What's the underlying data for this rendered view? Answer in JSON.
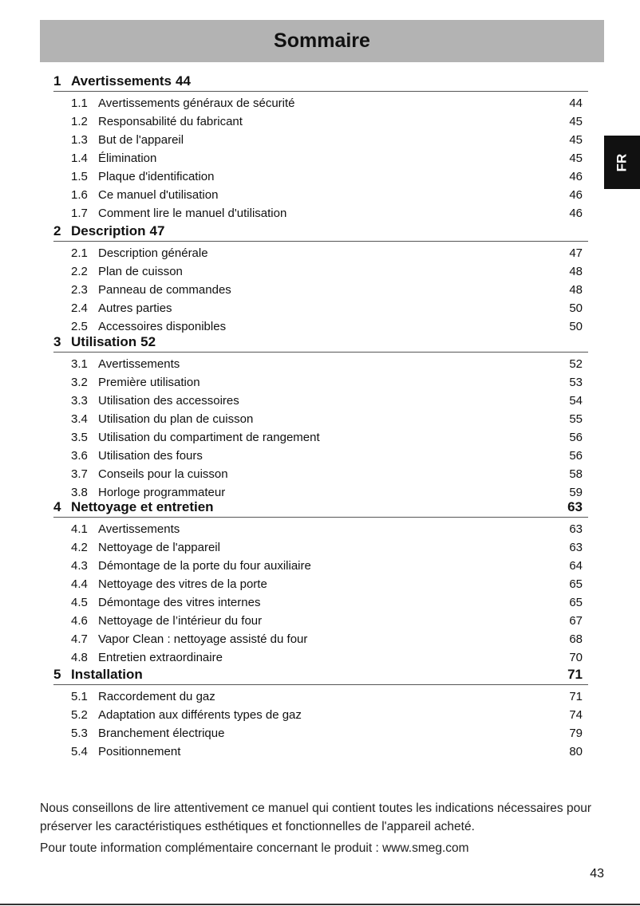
{
  "header": {
    "title": "Sommaire"
  },
  "language_tab": "FR",
  "sections": [
    {
      "num": "1",
      "title": "Avertissements",
      "page": "44",
      "entries": [
        {
          "num": "1.1",
          "title": "Avertissements généraux de sécurité",
          "page": "44"
        },
        {
          "num": "1.2",
          "title": "Responsabilité du fabricant",
          "page": "45"
        },
        {
          "num": "1.3",
          "title": "But de l'appareil",
          "page": "45"
        },
        {
          "num": "1.4",
          "title": "Élimination",
          "page": "45"
        },
        {
          "num": "1.5",
          "title": "Plaque d'identification",
          "page": "46"
        },
        {
          "num": "1.6",
          "title": "Ce manuel d'utilisation",
          "page": "46"
        },
        {
          "num": "1.7",
          "title": "Comment lire le manuel d'utilisation",
          "page": "46"
        }
      ]
    },
    {
      "num": "2",
      "title": "Description",
      "page": "47",
      "entries": [
        {
          "num": "2.1",
          "title": "Description générale",
          "page": "47"
        },
        {
          "num": "2.2",
          "title": "Plan de cuisson",
          "page": "48"
        },
        {
          "num": "2.3",
          "title": "Panneau de commandes",
          "page": "48"
        },
        {
          "num": "2.4",
          "title": "Autres parties",
          "page": "50"
        },
        {
          "num": "2.5",
          "title": "Accessoires disponibles",
          "page": "50"
        }
      ]
    },
    {
      "num": "3",
      "title": "Utilisation",
      "page": "52",
      "entries": [
        {
          "num": "3.1",
          "title": "Avertissements",
          "page": "52"
        },
        {
          "num": "3.2",
          "title": "Première utilisation",
          "page": "53"
        },
        {
          "num": "3.3",
          "title": "Utilisation des accessoires",
          "page": "54"
        },
        {
          "num": "3.4",
          "title": "Utilisation du plan de cuisson",
          "page": "55"
        },
        {
          "num": "3.5",
          "title": "Utilisation du compartiment de rangement",
          "page": "56"
        },
        {
          "num": "3.6",
          "title": "Utilisation des fours",
          "page": "56"
        },
        {
          "num": "3.7",
          "title": "Conseils pour la cuisson",
          "page": "58"
        },
        {
          "num": "3.8",
          "title": "Horloge programmateur",
          "page": "59"
        }
      ]
    },
    {
      "num": "4",
      "title": "Nettoyage et entretien",
      "page": "63",
      "entries": [
        {
          "num": "4.1",
          "title": "Avertissements",
          "page": "63"
        },
        {
          "num": "4.2",
          "title": "Nettoyage de l'appareil",
          "page": "63"
        },
        {
          "num": "4.3",
          "title": "Démontage de la porte du four auxiliaire",
          "page": "64"
        },
        {
          "num": "4.4",
          "title": "Nettoyage des vitres de la porte",
          "page": "65"
        },
        {
          "num": "4.5",
          "title": "Démontage des vitres internes",
          "page": "65"
        },
        {
          "num": "4.6",
          "title": "Nettoyage de l’intérieur du four",
          "page": "67"
        },
        {
          "num": "4.7",
          "title": "Vapor Clean : nettoyage assisté du four",
          "page": "68"
        },
        {
          "num": "4.8",
          "title": "Entretien extraordinaire",
          "page": "70"
        }
      ]
    },
    {
      "num": "5",
      "title": "Installation",
      "page": "71",
      "entries": [
        {
          "num": "5.1",
          "title": "Raccordement du gaz",
          "page": "71"
        },
        {
          "num": "5.2",
          "title": "Adaptation aux différents types de gaz",
          "page": "74"
        },
        {
          "num": "5.3",
          "title": "Branchement électrique",
          "page": "79"
        },
        {
          "num": "5.4",
          "title": "Positionnement",
          "page": "80"
        }
      ]
    }
  ],
  "intro": {
    "line1": "Nous conseillons de lire attentivement ce manuel qui contient toutes les indications nécessaires pour préserver les caractéristiques esthétiques et fonctionnelles de l'appareil acheté.",
    "line2": "Pour toute information complémentaire concernant le produit : www.smeg.com"
  },
  "page_number": "43"
}
